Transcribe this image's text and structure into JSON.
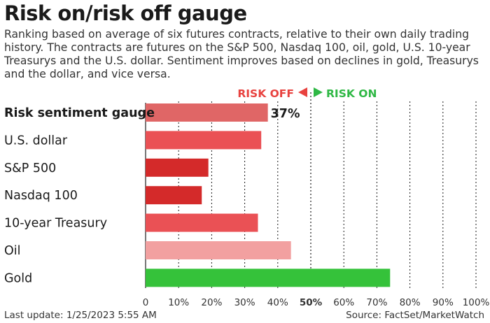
{
  "header": {
    "title": "Risk on/risk off gauge",
    "subtitle": "Ranking based on average of six futures contracts, relative to their own daily trading history. The contracts are futures on the S&P 500, Nasdaq 100, oil, gold, U.S. 10-year Treasurys and the U.S. dollar. Sentiment improves based on declines in gold, Treasurys and the dollar, and vice versa."
  },
  "legend": {
    "risk_off": "RISK OFF",
    "risk_on": "RISK ON",
    "risk_off_color": "#e8423f",
    "risk_on_color": "#2fb845"
  },
  "chart_data": {
    "type": "bar",
    "orientation": "horizontal",
    "categories": [
      "Risk sentiment gauge",
      "U.S. dollar",
      "S&P 500",
      "Nasdaq 100",
      "10-year Treasury",
      "Oil",
      "Gold"
    ],
    "values": [
      37,
      35,
      19,
      17,
      34,
      44,
      74
    ],
    "bar_colors": [
      "#e06666",
      "#ea5155",
      "#d42a2a",
      "#d42a2a",
      "#ea5155",
      "#f2a0a0",
      "#35c23a"
    ],
    "highlight_label": "37%",
    "xlim": [
      0,
      100
    ],
    "x_ticks": [
      "0",
      "10%",
      "20%",
      "30%",
      "40%",
      "50%",
      "60%",
      "70%",
      "80%",
      "90%",
      "100%"
    ],
    "grid": "vertical dotted"
  },
  "footer": {
    "last_update": "Last update: 1/25/2023 5:55 AM",
    "source": "Source: FactSet/MarketWatch"
  }
}
